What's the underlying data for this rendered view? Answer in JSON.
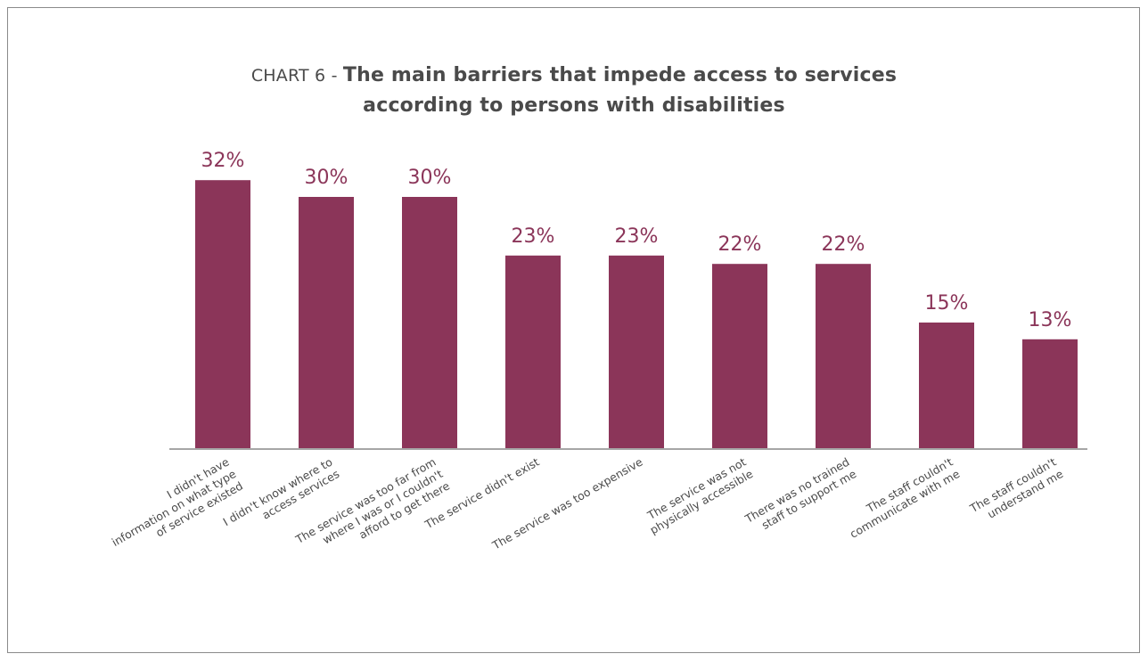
{
  "title": {
    "prefix": "CHART 6 - ",
    "line1": "The main barriers that impede access to services",
    "line2": "according to persons with disabilities"
  },
  "colors": {
    "bar": "#8b3559",
    "value_label": "#8b3559",
    "text": "#4a4a4a",
    "axis": "#a6a6a6"
  },
  "chart_data": {
    "type": "bar",
    "categories": [
      [
        "I didn't have",
        "information on what type",
        "of service existed"
      ],
      [
        "I didn't know where to",
        "access services"
      ],
      [
        "The service was too far from",
        "where I was or I couldn't",
        "afford to get there"
      ],
      [
        "The service didn't exist"
      ],
      [
        "The service was too expensive"
      ],
      [
        "The service was not",
        "physically accessible"
      ],
      [
        "There was no trained",
        "staff to support me"
      ],
      [
        "The staff couldn't",
        "communicate with me"
      ],
      [
        "The staff couldn't",
        "understand me"
      ]
    ],
    "values": [
      32,
      30,
      30,
      23,
      23,
      22,
      22,
      15,
      13
    ],
    "value_labels": [
      "32%",
      "30%",
      "30%",
      "23%",
      "23%",
      "22%",
      "22%",
      "15%",
      "13%"
    ],
    "ylim": [
      0,
      40
    ],
    "grid": false,
    "legend": "none"
  }
}
